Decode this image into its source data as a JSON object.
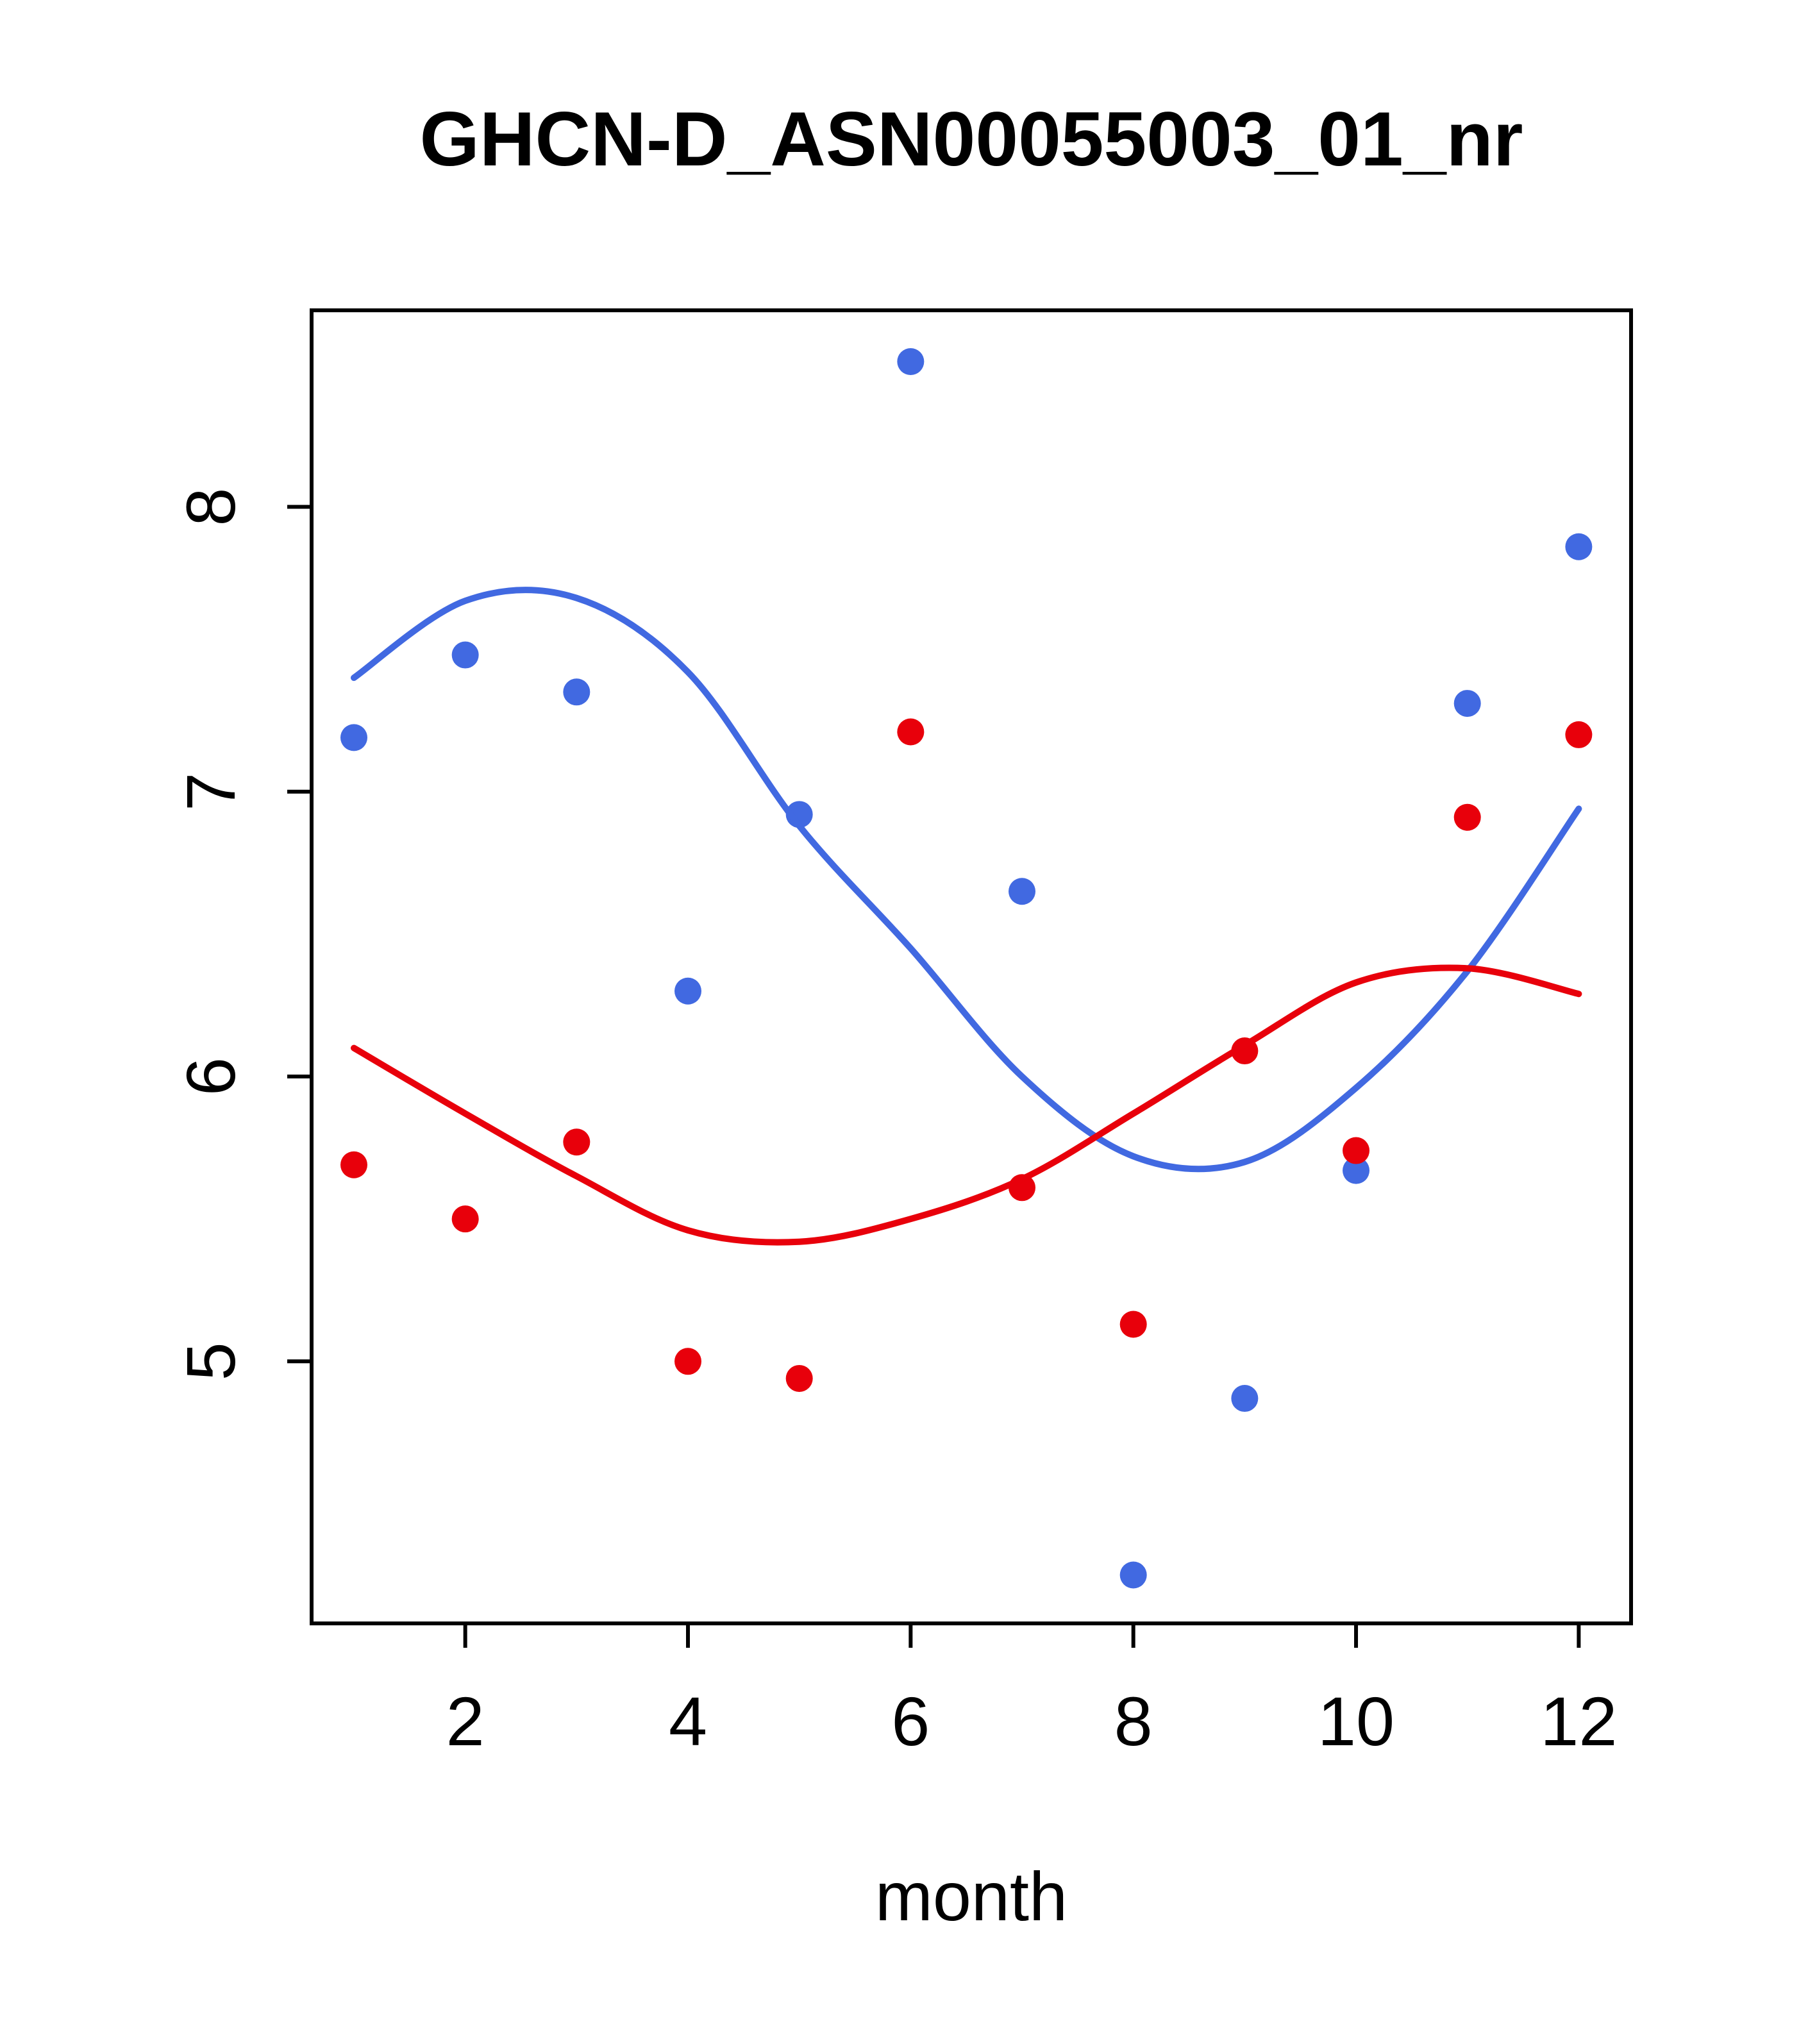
{
  "page": {
    "background": "#FFFFFF"
  },
  "chart_data": {
    "type": "scatter",
    "title": "GHCN-D_ASN00055003_01_nr",
    "xlabel": "month",
    "ylabel": "",
    "grid": false,
    "legend": null,
    "xlim": [
      0.62,
      12.47
    ],
    "ylim": [
      4.08,
      8.69
    ],
    "x_ticks": [
      2,
      4,
      6,
      8,
      10,
      12
    ],
    "y_ticks": [
      5,
      6,
      7,
      8
    ],
    "months": [
      1,
      2,
      3,
      4,
      5,
      6,
      7,
      8,
      9,
      10,
      11,
      12
    ],
    "series": [
      {
        "name": "blue-points",
        "kind": "points",
        "color": "#4169E1",
        "values": [
          7.19,
          7.48,
          7.35,
          6.3,
          6.92,
          8.51,
          6.65,
          4.25,
          4.87,
          5.67,
          7.31,
          7.86
        ]
      },
      {
        "name": "red-points",
        "kind": "points",
        "color": "#E8000B",
        "values": [
          5.69,
          5.5,
          5.77,
          5.0,
          4.94,
          7.21,
          5.61,
          5.13,
          6.09,
          5.74,
          6.91,
          7.2
        ]
      },
      {
        "name": "blue-smooth-line",
        "kind": "line",
        "color": "#4169E1",
        "values": [
          7.4,
          7.67,
          7.68,
          7.42,
          6.88,
          6.45,
          6.0,
          5.72,
          5.7,
          5.96,
          6.37,
          6.94
        ]
      },
      {
        "name": "red-smooth-line",
        "kind": "line",
        "color": "#E8000B",
        "values": [
          6.1,
          5.87,
          5.65,
          5.46,
          5.42,
          5.5,
          5.64,
          5.87,
          6.11,
          6.33,
          6.38,
          6.29
        ]
      }
    ]
  }
}
